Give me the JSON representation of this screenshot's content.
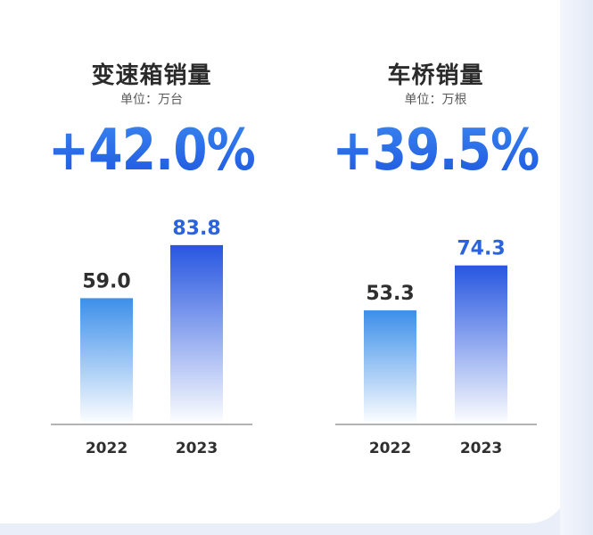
{
  "chart_data": [
    {
      "type": "bar",
      "title": "变速箱销量",
      "unit_label": "单位：万台",
      "growth_label": "+42.0%",
      "categories": [
        "2022",
        "2023"
      ],
      "values": [
        59.0,
        83.8
      ],
      "value_labels": [
        "59.0",
        "83.8"
      ],
      "ylim": [
        0,
        100
      ],
      "grid": false,
      "colors": {
        "bar_2022": "#3d8fea",
        "bar_2023": "#2756e0",
        "label_2022": "#2f2f2f",
        "label_2023": "#2a63dc"
      }
    },
    {
      "type": "bar",
      "title": "车桥销量",
      "unit_label": "单位：万根",
      "growth_label": "+39.5%",
      "categories": [
        "2022",
        "2023"
      ],
      "values": [
        53.3,
        74.3
      ],
      "value_labels": [
        "53.3",
        "74.3"
      ],
      "ylim": [
        0,
        100
      ],
      "grid": false,
      "colors": {
        "bar_2022": "#3d8fea",
        "bar_2023": "#2756e0",
        "label_2022": "#2f2f2f",
        "label_2023": "#2a63dc"
      }
    }
  ]
}
